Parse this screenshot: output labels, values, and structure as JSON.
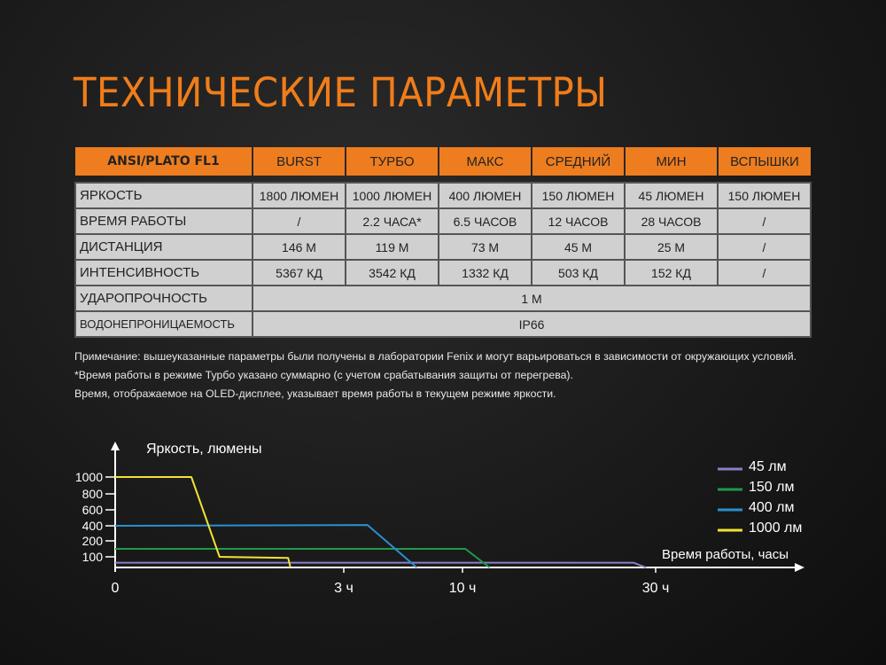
{
  "title": "ТЕХНИЧЕСКИЕ ПАРАМЕТРЫ",
  "table": {
    "headers": [
      "ANSI/PLATO FL1",
      "BURST",
      "ТУРБО",
      "МАКС",
      "СРЕДНИЙ",
      "МИН",
      "ВСПЫШКИ"
    ],
    "rows": [
      {
        "label": "ЯРКОСТЬ",
        "values": [
          "1800 ЛЮМЕН",
          "1000 ЛЮМЕН",
          "400 ЛЮМЕН",
          "150 ЛЮМЕН",
          "45 ЛЮМЕН",
          "150 ЛЮМЕН"
        ]
      },
      {
        "label": "ВРЕМЯ РАБОТЫ",
        "values": [
          "/",
          "2.2 ЧАСА*",
          "6.5 ЧАСОВ",
          "12 ЧАСОВ",
          "28 ЧАСОВ",
          "/"
        ]
      },
      {
        "label": "ДИСТАНЦИЯ",
        "values": [
          "146 М",
          "119 М",
          "73 М",
          "45 М",
          "25 М",
          "/"
        ]
      },
      {
        "label": "ИНТЕНСИВНОСТЬ",
        "values": [
          "5367 КД",
          "3542 КД",
          "1332 КД",
          "503 КД",
          "152 КД",
          "/"
        ]
      },
      {
        "label": "УДАРОПРОЧНОСТЬ",
        "merged": "1 М"
      },
      {
        "label": "ВОДОНЕПРОНИЦАЕМОСТЬ",
        "merged": "IP66"
      }
    ]
  },
  "notes": [
    "Примечание: вышеуказанные параметры были получены в лаборатории Fenix и могут варьироваться в зависимости от окружающих условий.",
    "*Время работы в режиме Турбо указано суммарно (с учетом срабатывания защиты от перегрева).",
    "Время, отображаемое на OLED-дисплее, указывает время работы в текущем режиме яркости."
  ],
  "chart_data": {
    "type": "line",
    "ylabel": "Яркость, люмены",
    "xlabel": "Время работы, часы",
    "y_ticks": [
      "100",
      "200",
      "400",
      "600",
      "800",
      "1000"
    ],
    "x_ticks": [
      "0",
      "3 ч",
      "10 ч",
      "30 ч"
    ],
    "x_scale": "non-linear (piecewise)",
    "y_scale": "non-linear (piecewise)",
    "legend_position": "right",
    "series": [
      {
        "name": "45 лм",
        "color": "#8a7fc8",
        "points": [
          [
            0,
            45
          ],
          [
            27.7,
            45
          ],
          [
            29,
            0
          ]
        ]
      },
      {
        "name": "150 лм",
        "color": "#1f9a4a",
        "points": [
          [
            0,
            150
          ],
          [
            10.3,
            150
          ],
          [
            12.8,
            0
          ]
        ]
      },
      {
        "name": "400 лм",
        "color": "#2a8fd0",
        "points": [
          [
            0,
            400
          ],
          [
            4.4,
            410
          ],
          [
            7.3,
            0
          ]
        ]
      },
      {
        "name": "1000 лм",
        "color": "#f2e233",
        "points": [
          [
            0,
            1000
          ],
          [
            1.0,
            1000
          ],
          [
            1.37,
            100
          ],
          [
            2.27,
            90
          ],
          [
            2.3,
            0
          ]
        ]
      }
    ]
  }
}
